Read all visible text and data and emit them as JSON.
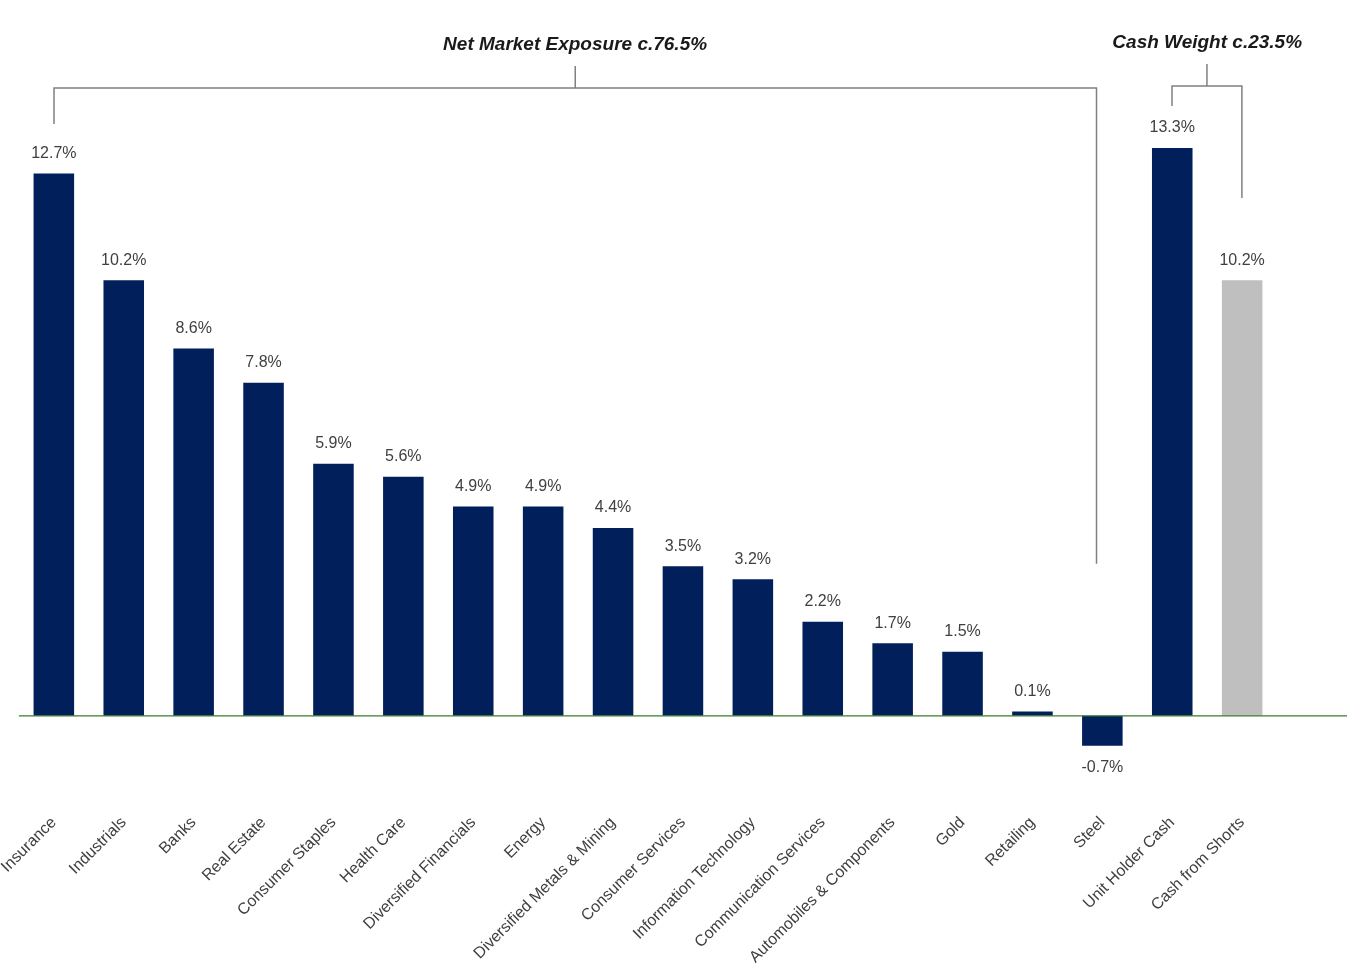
{
  "chart_data": {
    "type": "bar",
    "categories": [
      "Insurance",
      "Industrials",
      "Banks",
      "Real Estate",
      "Consumer Staples",
      "Health Care",
      "Diversified Financials",
      "Energy",
      "Diversified Metals & Mining",
      "Consumer Services",
      "Information Technology",
      "Communication Services",
      "Automobiles & Components",
      "Gold",
      "Retailing",
      "Steel",
      "Unit Holder Cash",
      "Cash from Shorts",
      null
    ],
    "values": [
      12.7,
      10.2,
      8.6,
      7.8,
      5.9,
      5.6,
      4.9,
      4.9,
      4.4,
      3.5,
      3.2,
      2.2,
      1.7,
      1.5,
      0.1,
      -0.7,
      13.3,
      10.2,
      null
    ],
    "colors": [
      "#001f5b",
      "#001f5b",
      "#001f5b",
      "#001f5b",
      "#001f5b",
      "#001f5b",
      "#001f5b",
      "#001f5b",
      "#001f5b",
      "#001f5b",
      "#001f5b",
      "#001f5b",
      "#001f5b",
      "#001f5b",
      "#001f5b",
      "#001f5b",
      "#001f5b",
      "#bfbfbf",
      "#001f5b"
    ],
    "value_labels": [
      "12.7%",
      "10.2%",
      "8.6%",
      "7.8%",
      "5.9%",
      "5.6%",
      "4.9%",
      "4.9%",
      "4.4%",
      "3.5%",
      "3.2%",
      "2.2%",
      "1.7%",
      "1.5%",
      "0.1%",
      "-0.7%",
      "13.3%",
      "10.2%",
      null
    ],
    "annotations": [
      "Net Market Exposure c.76.5%",
      "Cash Weight c.23.5%"
    ],
    "ref_lines": [
      {
        "axis": "y",
        "value": 0,
        "color": "#3a7d2c"
      }
    ],
    "grid": false,
    "legend": false
  }
}
